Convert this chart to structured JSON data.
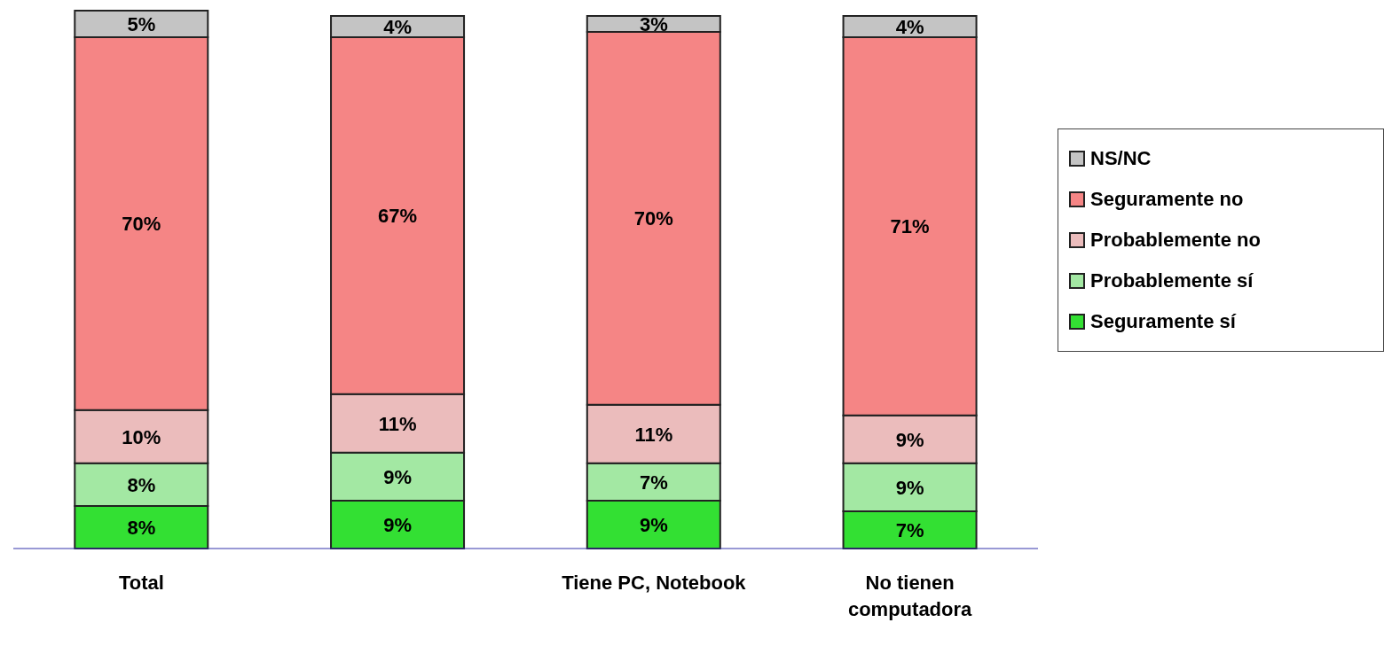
{
  "chart_data": {
    "type": "bar",
    "stacked": true,
    "legend": "right",
    "grid": false,
    "categories": [
      "Total",
      null,
      "Tiene PC, Notebook",
      "No tienen computadora"
    ],
    "series": [
      {
        "name": "Seguramente sí",
        "color": "#33e033",
        "values": [
          8,
          9,
          9,
          7
        ],
        "value_labels": [
          "8%",
          "9%",
          "9%",
          "7%"
        ]
      },
      {
        "name": "Probablemente sí",
        "color": "#a3e8a3",
        "values": [
          8,
          9,
          7,
          9
        ],
        "value_labels": [
          "8%",
          "9%",
          "7%",
          "9%"
        ]
      },
      {
        "name": "Probablemente no",
        "color": "#ebbcbc",
        "values": [
          10,
          11,
          11,
          9
        ],
        "value_labels": [
          "10%",
          "11%",
          "11%",
          "9%"
        ]
      },
      {
        "name": "Seguramente no",
        "color": "#f58585",
        "values": [
          70,
          67,
          70,
          71
        ],
        "value_labels": [
          "70%",
          "67%",
          "70%",
          "71%"
        ]
      },
      {
        "name": "NS/NC",
        "color": "#c4c4c4",
        "values": [
          5,
          4,
          3,
          4
        ],
        "value_labels": [
          "5%",
          "4%",
          "3%",
          "4%"
        ]
      }
    ]
  }
}
